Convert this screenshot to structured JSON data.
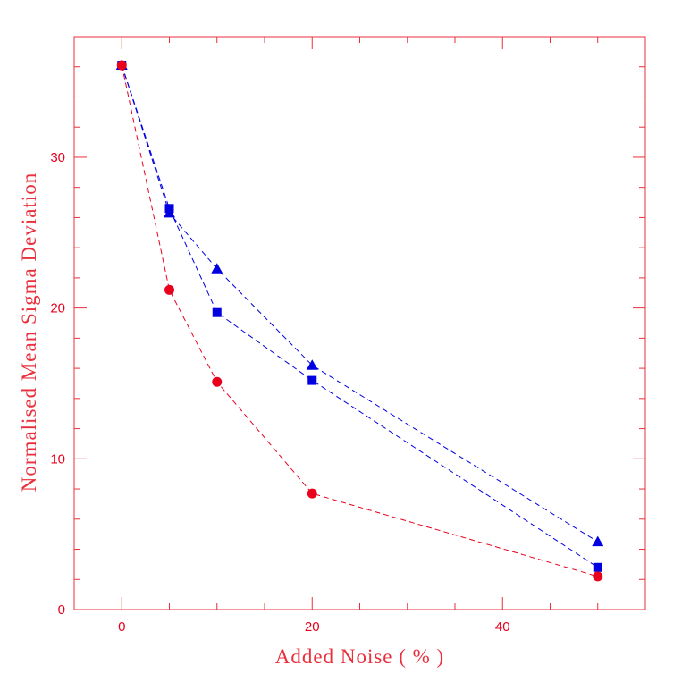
{
  "chart_data": {
    "type": "line",
    "title": "",
    "xlabel": "Added Noise ( % )",
    "ylabel": "Normalised Mean Sigma Deviation",
    "xlim": [
      -5,
      55
    ],
    "ylim": [
      0,
      38
    ],
    "x_ticks": [
      0,
      20,
      40
    ],
    "y_ticks": [
      0,
      10,
      20,
      30
    ],
    "x_minor_step": 5,
    "y_minor_step": 2,
    "grid": false,
    "legend": "none",
    "frame_color": "#e8303c",
    "series": [
      {
        "marker": "triangle",
        "color": "#0000e0",
        "line_style": "dashed",
        "x": [
          0,
          5,
          10,
          20,
          50
        ],
        "y": [
          36.1,
          26.3,
          22.6,
          16.2,
          4.5
        ]
      },
      {
        "marker": "square",
        "color": "#0000e0",
        "line_style": "dashed",
        "x": [
          0,
          5,
          10,
          20,
          50
        ],
        "y": [
          36.1,
          26.6,
          19.7,
          15.2,
          2.8
        ]
      },
      {
        "marker": "circle",
        "color": "#e8001c",
        "line_style": "dashed",
        "x": [
          0,
          5,
          10,
          20,
          50
        ],
        "y": [
          36.1,
          21.2,
          15.1,
          7.7,
          2.2
        ]
      }
    ]
  }
}
